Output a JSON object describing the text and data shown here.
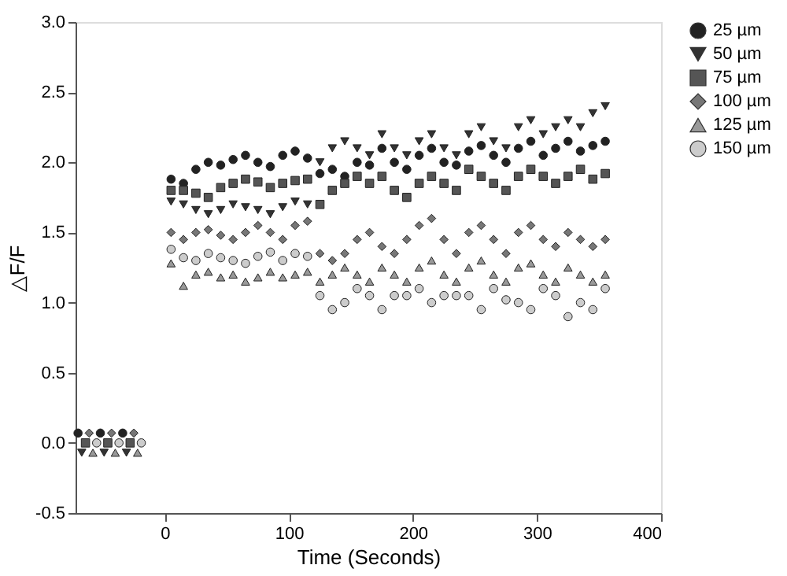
{
  "chart_data": {
    "type": "scatter",
    "xlabel": "Time (Seconds)",
    "ylabel": "△F/F",
    "series": [
      {
        "name": "25 µm",
        "color": "#222222",
        "marker": "circle",
        "x": [
          -70,
          -52,
          -34,
          5,
          15,
          25,
          35,
          45,
          55,
          65,
          75,
          85,
          95,
          105,
          115,
          125,
          135,
          145,
          155,
          165,
          175,
          185,
          195,
          205,
          215,
          225,
          235,
          245,
          255,
          265,
          275,
          285,
          295,
          305,
          315,
          325,
          335,
          345,
          355
        ],
        "values": [
          0.07,
          0.07,
          0.07,
          1.88,
          1.85,
          1.95,
          2.0,
          1.98,
          2.02,
          2.05,
          2.0,
          1.97,
          2.05,
          2.08,
          2.03,
          1.92,
          1.95,
          1.9,
          2.0,
          1.98,
          2.1,
          2.0,
          1.95,
          2.05,
          2.1,
          2.0,
          1.98,
          2.08,
          2.12,
          2.05,
          2.0,
          2.1,
          2.15,
          2.05,
          2.1,
          2.15,
          2.08,
          2.12,
          2.15
        ]
      },
      {
        "name": "50 µm",
        "color": "#333333",
        "marker": "triangle-down",
        "x": [
          -67,
          -49,
          -31,
          5,
          15,
          25,
          35,
          45,
          55,
          65,
          75,
          85,
          95,
          105,
          115,
          125,
          135,
          145,
          155,
          165,
          175,
          185,
          195,
          205,
          215,
          225,
          235,
          245,
          255,
          265,
          275,
          285,
          295,
          305,
          315,
          325,
          335,
          345,
          355
        ],
        "values": [
          -0.07,
          -0.07,
          -0.07,
          1.72,
          1.7,
          1.66,
          1.63,
          1.66,
          1.7,
          1.68,
          1.66,
          1.63,
          1.68,
          1.72,
          1.7,
          2.0,
          2.1,
          2.15,
          2.1,
          2.05,
          2.2,
          2.1,
          2.05,
          2.15,
          2.2,
          2.1,
          2.05,
          2.2,
          2.25,
          2.15,
          2.1,
          2.25,
          2.3,
          2.2,
          2.25,
          2.3,
          2.25,
          2.35,
          2.4
        ]
      },
      {
        "name": "75 µm",
        "color": "#555555",
        "marker": "square",
        "x": [
          -64,
          -46,
          -28,
          5,
          15,
          25,
          35,
          45,
          55,
          65,
          75,
          85,
          95,
          105,
          115,
          125,
          135,
          145,
          155,
          165,
          175,
          185,
          195,
          205,
          215,
          225,
          235,
          245,
          255,
          265,
          275,
          285,
          295,
          305,
          315,
          325,
          335,
          345,
          355
        ],
        "values": [
          0.0,
          0.0,
          0.0,
          1.8,
          1.8,
          1.78,
          1.75,
          1.82,
          1.85,
          1.88,
          1.86,
          1.82,
          1.85,
          1.87,
          1.88,
          1.7,
          1.8,
          1.85,
          1.9,
          1.85,
          1.9,
          1.8,
          1.75,
          1.85,
          1.9,
          1.85,
          1.8,
          1.95,
          1.9,
          1.85,
          1.8,
          1.9,
          1.95,
          1.9,
          1.85,
          1.9,
          1.95,
          1.88,
          1.92
        ]
      },
      {
        "name": "100 µm",
        "color": "#777777",
        "marker": "diamond",
        "x": [
          -61,
          -43,
          -25,
          5,
          15,
          25,
          35,
          45,
          55,
          65,
          75,
          85,
          95,
          105,
          115,
          125,
          135,
          145,
          155,
          165,
          175,
          185,
          195,
          205,
          215,
          225,
          235,
          245,
          255,
          265,
          275,
          285,
          295,
          305,
          315,
          325,
          335,
          345,
          355
        ],
        "values": [
          0.07,
          0.07,
          0.07,
          1.5,
          1.45,
          1.5,
          1.52,
          1.48,
          1.45,
          1.5,
          1.55,
          1.5,
          1.45,
          1.55,
          1.58,
          1.35,
          1.3,
          1.35,
          1.45,
          1.5,
          1.4,
          1.35,
          1.45,
          1.55,
          1.6,
          1.45,
          1.35,
          1.5,
          1.55,
          1.45,
          1.35,
          1.5,
          1.55,
          1.45,
          1.4,
          1.5,
          1.45,
          1.4,
          1.45
        ]
      },
      {
        "name": "125 µm",
        "color": "#999999",
        "marker": "triangle-up",
        "x": [
          -58,
          -40,
          -22,
          5,
          15,
          25,
          35,
          45,
          55,
          65,
          75,
          85,
          95,
          105,
          115,
          125,
          135,
          145,
          155,
          165,
          175,
          185,
          195,
          205,
          215,
          225,
          235,
          245,
          255,
          265,
          275,
          285,
          295,
          305,
          315,
          325,
          335,
          345,
          355
        ],
        "values": [
          -0.07,
          -0.07,
          -0.07,
          1.28,
          1.12,
          1.2,
          1.22,
          1.18,
          1.2,
          1.15,
          1.18,
          1.22,
          1.18,
          1.2,
          1.22,
          1.15,
          1.2,
          1.25,
          1.2,
          1.15,
          1.25,
          1.2,
          1.15,
          1.25,
          1.3,
          1.2,
          1.15,
          1.25,
          1.3,
          1.2,
          1.15,
          1.25,
          1.28,
          1.2,
          1.15,
          1.25,
          1.2,
          1.15,
          1.2
        ]
      },
      {
        "name": "150 µm",
        "color": "#cccccc",
        "marker": "circle",
        "x": [
          -55,
          -37,
          -19,
          5,
          15,
          25,
          35,
          45,
          55,
          65,
          75,
          85,
          95,
          105,
          115,
          125,
          135,
          145,
          155,
          165,
          175,
          185,
          195,
          205,
          215,
          225,
          235,
          245,
          255,
          265,
          275,
          285,
          295,
          305,
          315,
          325,
          335,
          345,
          355
        ],
        "values": [
          0.0,
          0.0,
          0.0,
          1.38,
          1.32,
          1.3,
          1.35,
          1.32,
          1.3,
          1.28,
          1.33,
          1.36,
          1.3,
          1.35,
          1.33,
          1.05,
          0.95,
          1.0,
          1.1,
          1.05,
          0.95,
          1.05,
          1.05,
          1.1,
          1.0,
          1.05,
          1.05,
          1.05,
          0.95,
          1.1,
          1.02,
          1.0,
          0.95,
          1.1,
          1.05,
          0.9,
          1.0,
          0.95,
          1.1
        ]
      }
    ],
    "xlim": [
      -72,
      400
    ],
    "xticks": [
      0,
      100,
      200,
      300,
      400
    ],
    "ylim": [
      -0.5,
      3.0
    ],
    "yticks": [
      {
        "value": -0.5,
        "label": "-0.5"
      },
      {
        "value": 0,
        "label": "0.0"
      },
      {
        "value": 0.5,
        "label": "0.5"
      },
      {
        "value": 1,
        "label": "1.0"
      },
      {
        "value": 1.5,
        "label": "1.5"
      },
      {
        "value": 2,
        "label": "2.0"
      },
      {
        "value": 2.5,
        "label": "2.5"
      },
      {
        "value": 3,
        "label": "3.0"
      }
    ],
    "grid": false,
    "legend": "right"
  }
}
